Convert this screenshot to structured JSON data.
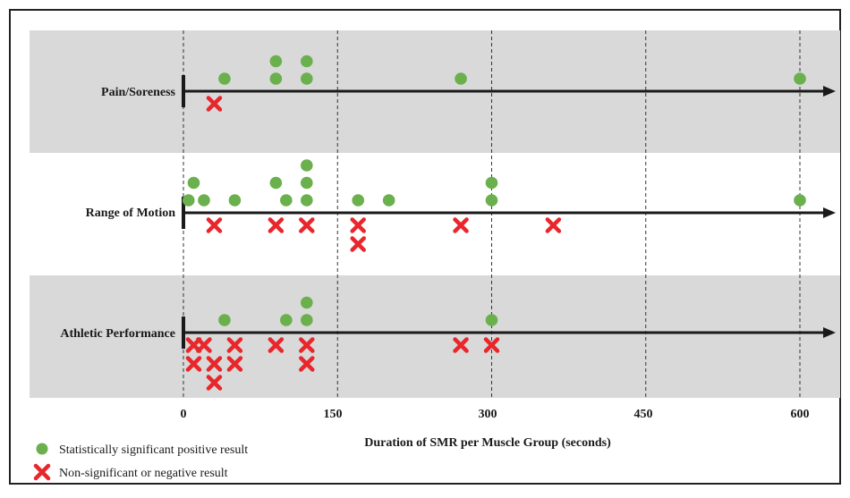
{
  "chart_data": {
    "type": "scatter",
    "title": "",
    "xlabel": "Duration of SMR per Muscle Group (seconds)",
    "xlim": [
      0,
      600
    ],
    "x_ticks": [
      0,
      150,
      300,
      450,
      600
    ],
    "x_tick_labels": [
      "0",
      "150",
      "300",
      "450",
      "600"
    ],
    "grid": "vertical dashed lines at each x tick",
    "categories": [
      "Pain/Soreness",
      "Range of Motion",
      "Athletic Performance"
    ],
    "series": [
      {
        "name": "Statistically significant positive result",
        "color": "#6ab04c",
        "marker": "circle",
        "points": [
          {
            "category": "Pain/Soreness",
            "x": 40,
            "stack": 0
          },
          {
            "category": "Pain/Soreness",
            "x": 90,
            "stack": 0
          },
          {
            "category": "Pain/Soreness",
            "x": 90,
            "stack": 1
          },
          {
            "category": "Pain/Soreness",
            "x": 120,
            "stack": 0
          },
          {
            "category": "Pain/Soreness",
            "x": 120,
            "stack": 1
          },
          {
            "category": "Pain/Soreness",
            "x": 270,
            "stack": 0
          },
          {
            "category": "Pain/Soreness",
            "x": 600,
            "stack": 0
          },
          {
            "category": "Range of Motion",
            "x": 5,
            "stack": 0
          },
          {
            "category": "Range of Motion",
            "x": 10,
            "stack": 1
          },
          {
            "category": "Range of Motion",
            "x": 20,
            "stack": 0
          },
          {
            "category": "Range of Motion",
            "x": 50,
            "stack": 0
          },
          {
            "category": "Range of Motion",
            "x": 90,
            "stack": 1
          },
          {
            "category": "Range of Motion",
            "x": 100,
            "stack": 0
          },
          {
            "category": "Range of Motion",
            "x": 120,
            "stack": 0
          },
          {
            "category": "Range of Motion",
            "x": 120,
            "stack": 1
          },
          {
            "category": "Range of Motion",
            "x": 120,
            "stack": 2
          },
          {
            "category": "Range of Motion",
            "x": 170,
            "stack": 0
          },
          {
            "category": "Range of Motion",
            "x": 200,
            "stack": 0
          },
          {
            "category": "Range of Motion",
            "x": 300,
            "stack": 0
          },
          {
            "category": "Range of Motion",
            "x": 300,
            "stack": 1
          },
          {
            "category": "Range of Motion",
            "x": 600,
            "stack": 0
          },
          {
            "category": "Athletic Performance",
            "x": 40,
            "stack": 0
          },
          {
            "category": "Athletic Performance",
            "x": 100,
            "stack": 0
          },
          {
            "category": "Athletic Performance",
            "x": 120,
            "stack": 0
          },
          {
            "category": "Athletic Performance",
            "x": 120,
            "stack": 1
          },
          {
            "category": "Athletic Performance",
            "x": 300,
            "stack": 0
          }
        ]
      },
      {
        "name": "Non-significant or negative result",
        "color": "#e8262b",
        "marker": "x",
        "points": [
          {
            "category": "Pain/Soreness",
            "x": 30,
            "stack": 0
          },
          {
            "category": "Range of Motion",
            "x": 30,
            "stack": 0
          },
          {
            "category": "Range of Motion",
            "x": 90,
            "stack": 0
          },
          {
            "category": "Range of Motion",
            "x": 120,
            "stack": 0
          },
          {
            "category": "Range of Motion",
            "x": 170,
            "stack": 0
          },
          {
            "category": "Range of Motion",
            "x": 170,
            "stack": 1
          },
          {
            "category": "Range of Motion",
            "x": 270,
            "stack": 0
          },
          {
            "category": "Range of Motion",
            "x": 360,
            "stack": 0
          },
          {
            "category": "Athletic Performance",
            "x": 10,
            "stack": 0
          },
          {
            "category": "Athletic Performance",
            "x": 20,
            "stack": 0
          },
          {
            "category": "Athletic Performance",
            "x": 50,
            "stack": 0
          },
          {
            "category": "Athletic Performance",
            "x": 90,
            "stack": 0
          },
          {
            "category": "Athletic Performance",
            "x": 120,
            "stack": 0
          },
          {
            "category": "Athletic Performance",
            "x": 270,
            "stack": 0
          },
          {
            "category": "Athletic Performance",
            "x": 300,
            "stack": 0
          },
          {
            "category": "Athletic Performance",
            "x": 10,
            "stack": 1
          },
          {
            "category": "Athletic Performance",
            "x": 30,
            "stack": 1
          },
          {
            "category": "Athletic Performance",
            "x": 50,
            "stack": 1
          },
          {
            "category": "Athletic Performance",
            "x": 120,
            "stack": 1
          },
          {
            "category": "Athletic Performance",
            "x": 30,
            "stack": 2
          }
        ]
      }
    ],
    "legend": {
      "position": "bottom-left",
      "entries": [
        {
          "label": "Statistically significant positive result",
          "marker": "circle",
          "color": "#6ab04c"
        },
        {
          "label": "Non-significant or negative result",
          "marker": "x",
          "color": "#e8262b"
        }
      ]
    },
    "band_colors": [
      "#d9d9d9",
      "#ffffff",
      "#d9d9d9"
    ]
  }
}
